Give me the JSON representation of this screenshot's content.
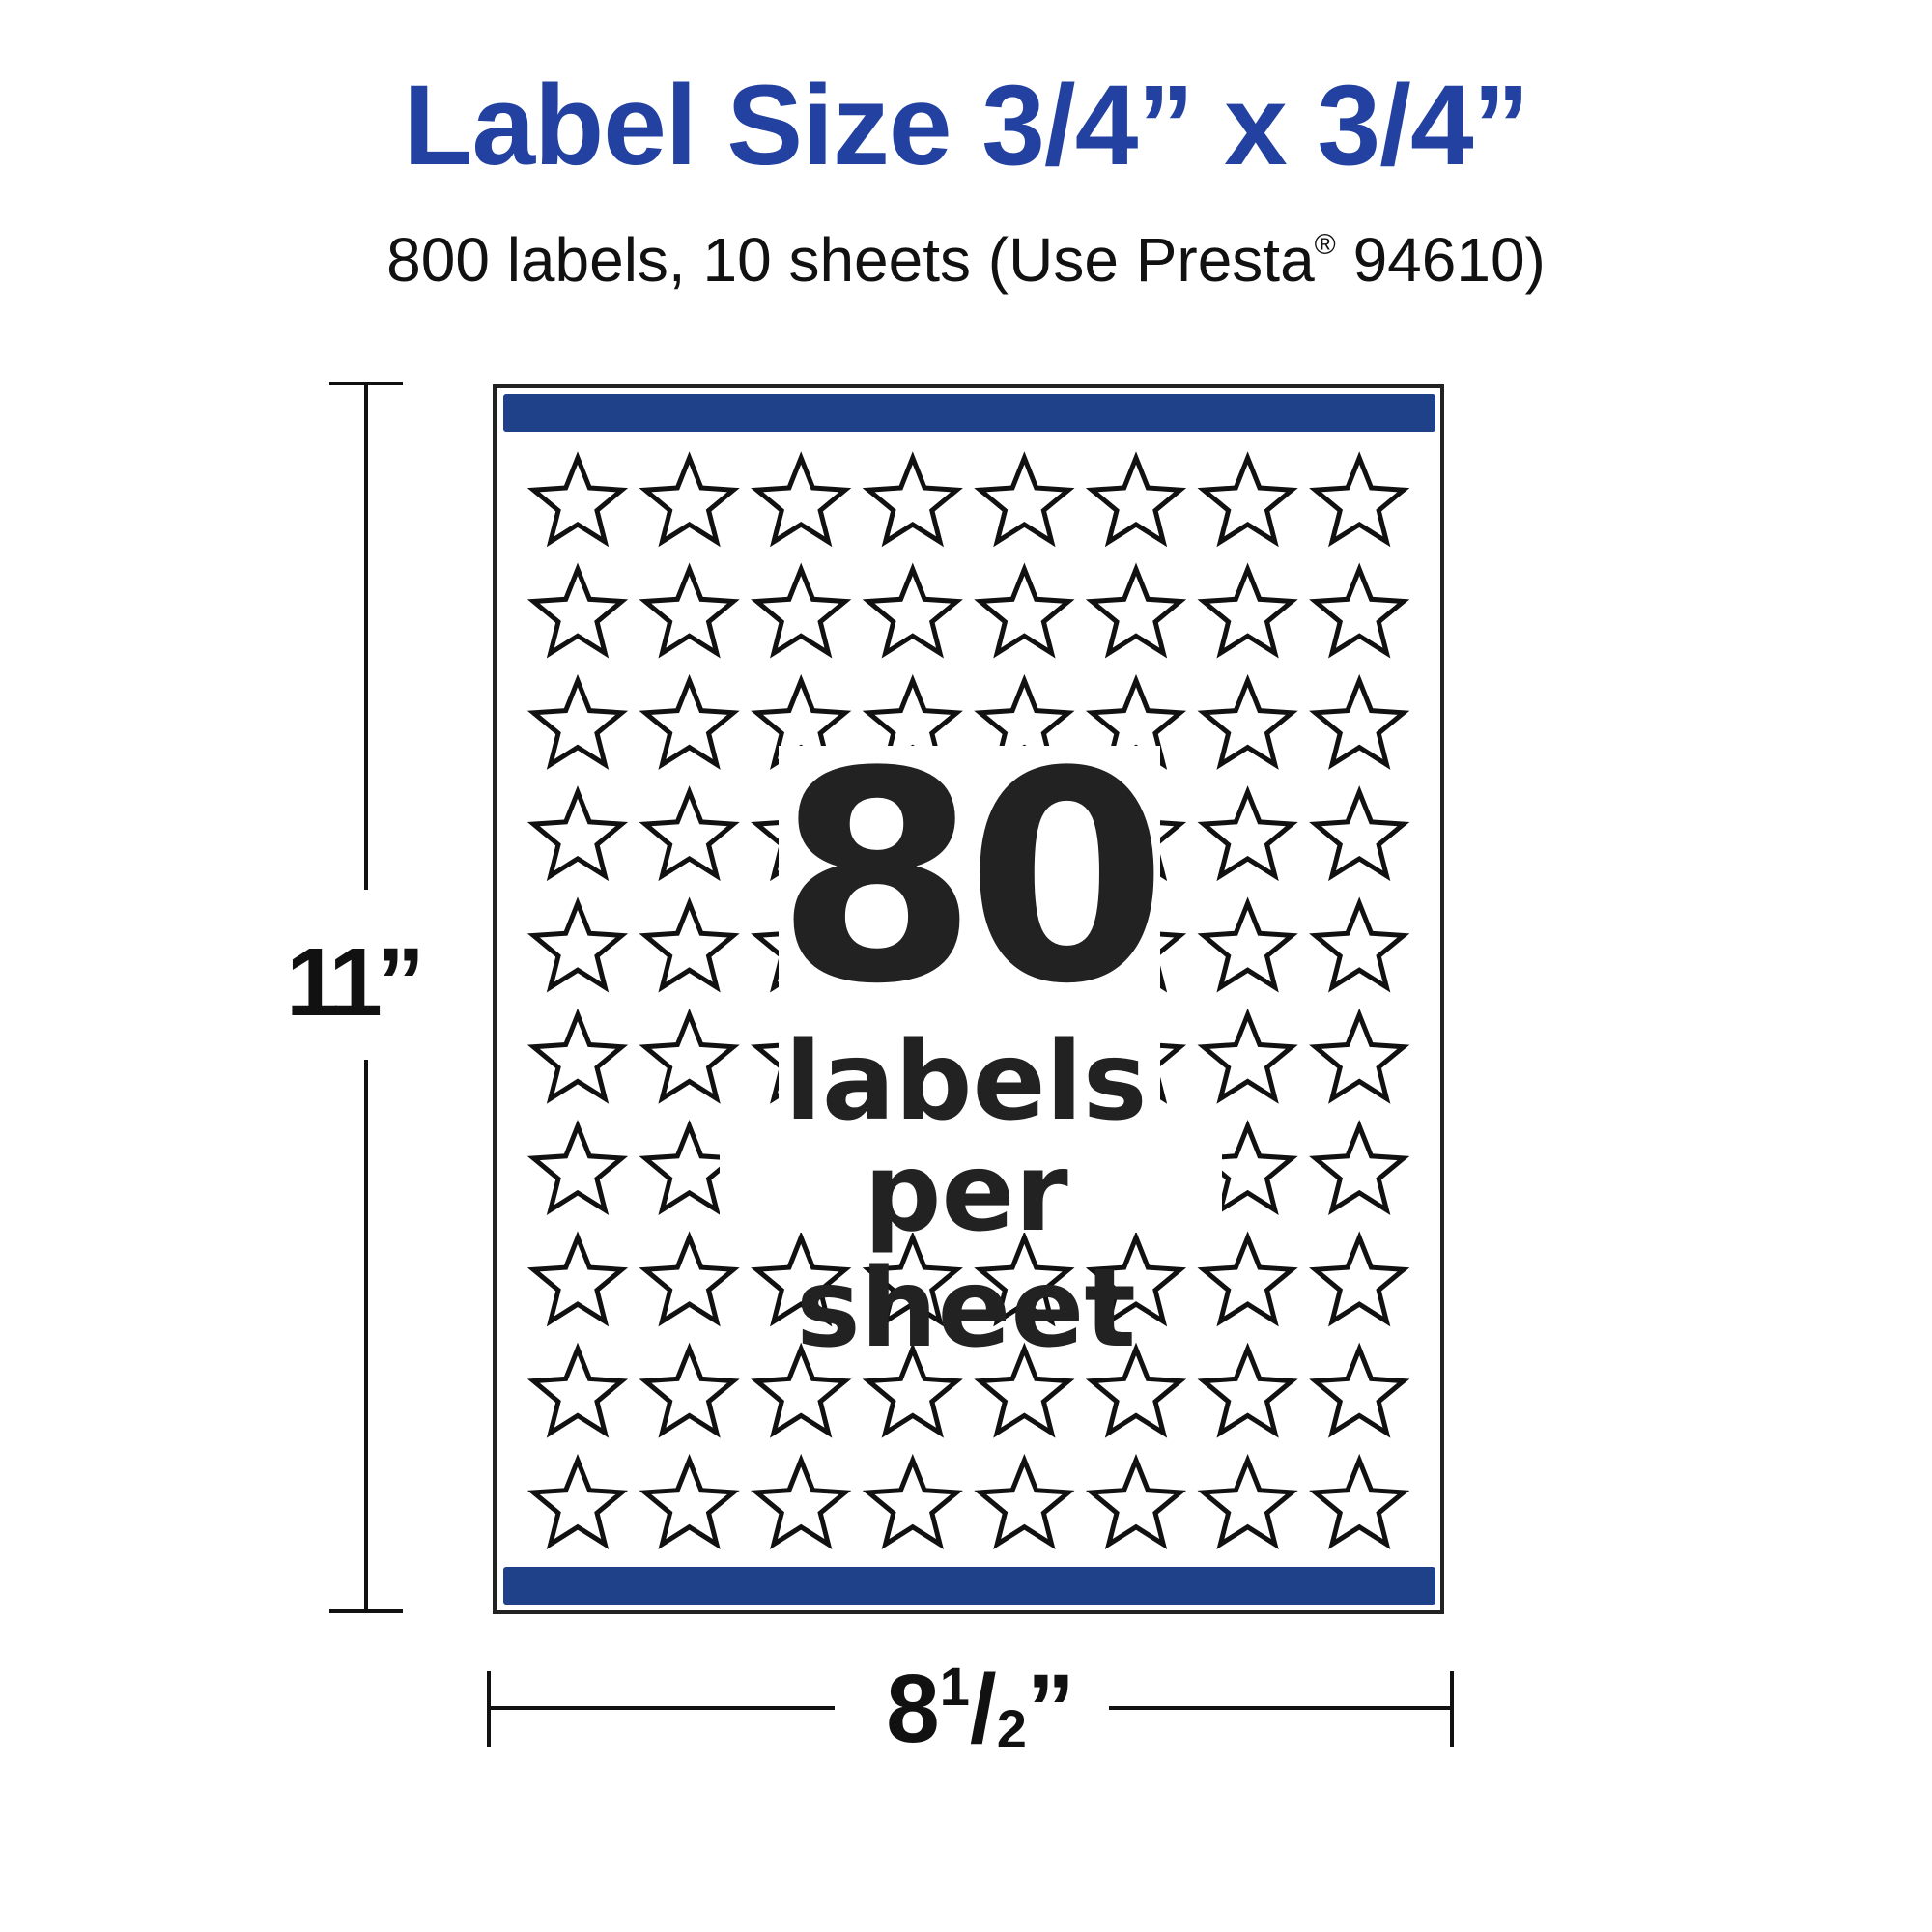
{
  "title": "Label Size 3/4” x 3/4”",
  "subtitle": {
    "text": "800 labels, 10 sheets (Use Presta",
    "reg": "®",
    "tail": " 94610)"
  },
  "sheet": {
    "columns": 8,
    "rows": 10,
    "label_icon": "star-outline-icon",
    "count": "80",
    "count_line1": "labels",
    "count_line2": "per sheet"
  },
  "dimensions": {
    "height": "11”",
    "width_whole": "8",
    "width_num": "1",
    "width_slash": "/",
    "width_den": "2",
    "width_mark": "”"
  },
  "colors": {
    "title": "#2341a0",
    "bar": "#1e418a",
    "ink": "#222222"
  }
}
